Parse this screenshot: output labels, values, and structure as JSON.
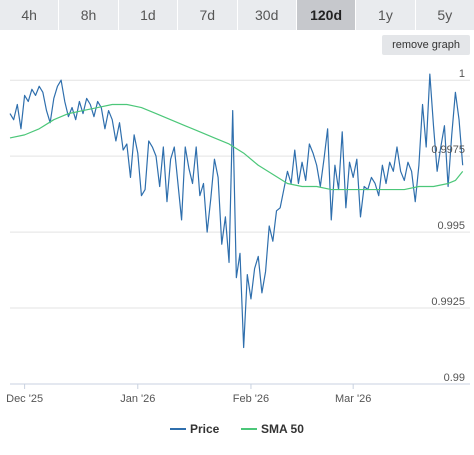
{
  "range_tabs": [
    {
      "label": "4h",
      "active": false
    },
    {
      "label": "8h",
      "active": false
    },
    {
      "label": "1d",
      "active": false
    },
    {
      "label": "7d",
      "active": false
    },
    {
      "label": "30d",
      "active": false
    },
    {
      "label": "120d",
      "active": true
    },
    {
      "label": "1y",
      "active": false
    },
    {
      "label": "5y",
      "active": false
    }
  ],
  "remove_graph_label": "remove graph",
  "colors": {
    "price": "#2f6fad",
    "sma": "#4cc779",
    "grid": "#e3e3e3",
    "axis": "#c8d2e0"
  },
  "chart_data": {
    "type": "line",
    "title": "",
    "xlabel": "",
    "ylabel": "",
    "ylim": [
      0.99,
      1.0005
    ],
    "y_ticks": [
      {
        "value": 1.0,
        "label": "1"
      },
      {
        "value": 0.9975,
        "label": "0.9975"
      },
      {
        "value": 0.995,
        "label": "0.995"
      },
      {
        "value": 0.9925,
        "label": "0.9925"
      },
      {
        "value": 0.99,
        "label": "0.99"
      }
    ],
    "x_domain": [
      "2025-11-27",
      "2026-04-02"
    ],
    "x_ticks": [
      {
        "date": "2025-12-01",
        "label": "Dec '25"
      },
      {
        "date": "2026-01-01",
        "label": "Jan '26"
      },
      {
        "date": "2026-02-01",
        "label": "Feb '26"
      },
      {
        "date": "2026-03-01",
        "label": "Mar '26"
      }
    ],
    "legend": {
      "position": "bottom-center"
    },
    "grid": true,
    "series": [
      {
        "name": "Price",
        "points": [
          [
            "2025-11-27",
            0.9989
          ],
          [
            "2025-11-28",
            0.9987
          ],
          [
            "2025-11-29",
            0.9992
          ],
          [
            "2025-11-30",
            0.9984
          ],
          [
            "2025-12-01",
            0.9995
          ],
          [
            "2025-12-02",
            0.9993
          ],
          [
            "2025-12-03",
            0.9997
          ],
          [
            "2025-12-04",
            0.9995
          ],
          [
            "2025-12-05",
            0.9998
          ],
          [
            "2025-12-06",
            0.9996
          ],
          [
            "2025-12-07",
            0.999
          ],
          [
            "2025-12-08",
            0.9986
          ],
          [
            "2025-12-09",
            0.9994
          ],
          [
            "2025-12-10",
            0.9998
          ],
          [
            "2025-12-11",
            1.0
          ],
          [
            "2025-12-12",
            0.9993
          ],
          [
            "2025-12-13",
            0.9988
          ],
          [
            "2025-12-14",
            0.9991
          ],
          [
            "2025-12-15",
            0.9987
          ],
          [
            "2025-12-16",
            0.9993
          ],
          [
            "2025-12-17",
            0.9989
          ],
          [
            "2025-12-18",
            0.9994
          ],
          [
            "2025-12-19",
            0.9992
          ],
          [
            "2025-12-20",
            0.9988
          ],
          [
            "2025-12-21",
            0.9993
          ],
          [
            "2025-12-22",
            0.9991
          ],
          [
            "2025-12-23",
            0.9984
          ],
          [
            "2025-12-24",
            0.999
          ],
          [
            "2025-12-25",
            0.9987
          ],
          [
            "2025-12-26",
            0.998
          ],
          [
            "2025-12-27",
            0.9986
          ],
          [
            "2025-12-28",
            0.9977
          ],
          [
            "2025-12-29",
            0.9979
          ],
          [
            "2025-12-30",
            0.9968
          ],
          [
            "2025-12-31",
            0.9982
          ],
          [
            "2026-01-01",
            0.9976
          ],
          [
            "2026-01-02",
            0.9962
          ],
          [
            "2026-01-03",
            0.9964
          ],
          [
            "2026-01-04",
            0.998
          ],
          [
            "2026-01-05",
            0.9978
          ],
          [
            "2026-01-06",
            0.9975
          ],
          [
            "2026-01-07",
            0.9965
          ],
          [
            "2026-01-08",
            0.9978
          ],
          [
            "2026-01-09",
            0.996
          ],
          [
            "2026-01-10",
            0.9974
          ],
          [
            "2026-01-11",
            0.9978
          ],
          [
            "2026-01-12",
            0.9966
          ],
          [
            "2026-01-13",
            0.9954
          ],
          [
            "2026-01-14",
            0.9978
          ],
          [
            "2026-01-15",
            0.9971
          ],
          [
            "2026-01-16",
            0.9966
          ],
          [
            "2026-01-17",
            0.9978
          ],
          [
            "2026-01-18",
            0.9962
          ],
          [
            "2026-01-19",
            0.9966
          ],
          [
            "2026-01-20",
            0.995
          ],
          [
            "2026-01-21",
            0.9961
          ],
          [
            "2026-01-22",
            0.9974
          ],
          [
            "2026-01-23",
            0.9968
          ],
          [
            "2026-01-24",
            0.9946
          ],
          [
            "2026-01-25",
            0.9955
          ],
          [
            "2026-01-26",
            0.994
          ],
          [
            "2026-01-27",
            0.999
          ],
          [
            "2026-01-28",
            0.9935
          ],
          [
            "2026-01-29",
            0.9943
          ],
          [
            "2026-01-30",
            0.9912
          ],
          [
            "2026-01-31",
            0.9936
          ],
          [
            "2026-02-01",
            0.9928
          ],
          [
            "2026-02-02",
            0.9938
          ],
          [
            "2026-02-03",
            0.9942
          ],
          [
            "2026-02-04",
            0.993
          ],
          [
            "2026-02-05",
            0.9937
          ],
          [
            "2026-02-06",
            0.9952
          ],
          [
            "2026-02-07",
            0.9947
          ],
          [
            "2026-02-08",
            0.9957
          ],
          [
            "2026-02-09",
            0.9958
          ],
          [
            "2026-02-10",
            0.9964
          ],
          [
            "2026-02-11",
            0.997
          ],
          [
            "2026-02-12",
            0.9966
          ],
          [
            "2026-02-13",
            0.9977
          ],
          [
            "2026-02-14",
            0.9966
          ],
          [
            "2026-02-15",
            0.9973
          ],
          [
            "2026-02-16",
            0.9967
          ],
          [
            "2026-02-17",
            0.9979
          ],
          [
            "2026-02-18",
            0.9976
          ],
          [
            "2026-02-19",
            0.9972
          ],
          [
            "2026-02-20",
            0.9965
          ],
          [
            "2026-02-21",
            0.9974
          ],
          [
            "2026-02-22",
            0.9984
          ],
          [
            "2026-02-23",
            0.9954
          ],
          [
            "2026-02-24",
            0.9972
          ],
          [
            "2026-02-25",
            0.9964
          ],
          [
            "2026-02-26",
            0.9983
          ],
          [
            "2026-02-27",
            0.9958
          ],
          [
            "2026-02-28",
            0.9973
          ],
          [
            "2026-03-01",
            0.9968
          ],
          [
            "2026-03-02",
            0.9974
          ],
          [
            "2026-03-03",
            0.9955
          ],
          [
            "2026-03-04",
            0.9965
          ],
          [
            "2026-03-05",
            0.9964
          ],
          [
            "2026-03-06",
            0.9968
          ],
          [
            "2026-03-07",
            0.9966
          ],
          [
            "2026-03-08",
            0.9962
          ],
          [
            "2026-03-09",
            0.9972
          ],
          [
            "2026-03-10",
            0.9966
          ],
          [
            "2026-03-11",
            0.9973
          ],
          [
            "2026-03-12",
            0.997
          ],
          [
            "2026-03-13",
            0.9978
          ],
          [
            "2026-03-14",
            0.997
          ],
          [
            "2026-03-15",
            0.9967
          ],
          [
            "2026-03-16",
            0.9973
          ],
          [
            "2026-03-17",
            0.997
          ],
          [
            "2026-03-18",
            0.996
          ],
          [
            "2026-03-19",
            0.9972
          ],
          [
            "2026-03-20",
            0.9992
          ],
          [
            "2026-03-21",
            0.9978
          ],
          [
            "2026-03-22",
            1.0002
          ],
          [
            "2026-03-23",
            0.9985
          ],
          [
            "2026-03-24",
            0.997
          ],
          [
            "2026-03-25",
            0.9978
          ],
          [
            "2026-03-26",
            0.9985
          ],
          [
            "2026-03-27",
            0.9965
          ],
          [
            "2026-03-28",
            0.9982
          ],
          [
            "2026-03-29",
            0.9996
          ],
          [
            "2026-03-30",
            0.9987
          ],
          [
            "2026-03-31",
            0.9972
          ]
        ]
      },
      {
        "name": "SMA 50",
        "points": [
          [
            "2025-11-27",
            0.9981
          ],
          [
            "2025-12-01",
            0.9982
          ],
          [
            "2025-12-05",
            0.9984
          ],
          [
            "2025-12-09",
            0.9987
          ],
          [
            "2025-12-13",
            0.9989
          ],
          [
            "2025-12-17",
            0.999
          ],
          [
            "2025-12-21",
            0.9991
          ],
          [
            "2025-12-25",
            0.9992
          ],
          [
            "2025-12-29",
            0.9992
          ],
          [
            "2026-01-02",
            0.9991
          ],
          [
            "2026-01-06",
            0.9989
          ],
          [
            "2026-01-10",
            0.9987
          ],
          [
            "2026-01-14",
            0.9985
          ],
          [
            "2026-01-18",
            0.9983
          ],
          [
            "2026-01-22",
            0.9981
          ],
          [
            "2026-01-26",
            0.9979
          ],
          [
            "2026-01-30",
            0.9976
          ],
          [
            "2026-02-03",
            0.9972
          ],
          [
            "2026-02-07",
            0.9969
          ],
          [
            "2026-02-11",
            0.9966
          ],
          [
            "2026-02-15",
            0.9965
          ],
          [
            "2026-02-19",
            0.9965
          ],
          [
            "2026-02-23",
            0.9964
          ],
          [
            "2026-02-27",
            0.9964
          ],
          [
            "2026-03-03",
            0.9964
          ],
          [
            "2026-03-07",
            0.9964
          ],
          [
            "2026-03-11",
            0.9964
          ],
          [
            "2026-03-15",
            0.9964
          ],
          [
            "2026-03-19",
            0.9965
          ],
          [
            "2026-03-23",
            0.9965
          ],
          [
            "2026-03-27",
            0.9966
          ],
          [
            "2026-03-29",
            0.9967
          ],
          [
            "2026-03-31",
            0.997
          ]
        ]
      }
    ]
  }
}
